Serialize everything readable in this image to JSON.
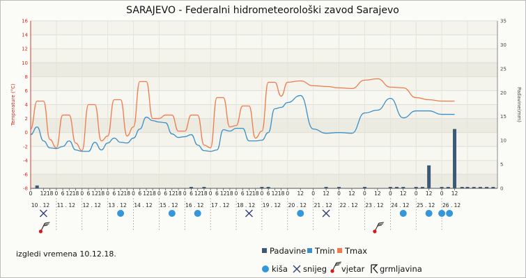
{
  "chart_data": {
    "type": "line",
    "title": "SARAJEVO - Federalni hidrometeorološki zavod Sarajevo",
    "ylabel": "Temperature (°C)",
    "y2label": "Padavine(mm)",
    "ylim": [
      -8,
      16
    ],
    "y2lim": [
      0,
      35
    ],
    "yticks": [
      -8,
      -6,
      -4,
      -2,
      0,
      2,
      4,
      6,
      8,
      10,
      12,
      14,
      16
    ],
    "y2ticks": [
      0,
      5,
      10,
      15,
      20,
      25,
      30,
      35
    ],
    "x_days": [
      "10 . 12",
      "11 . 12",
      "12 . 12",
      "13 . 12",
      "14 . 12",
      "15 . 12",
      "16 . 12",
      "17 . 12",
      "18 . 12",
      "19 . 12",
      "20 . 12",
      "21 . 12",
      "22 . 12",
      "23 . 12",
      "24 . 12",
      "25 . 12",
      "26 . 12"
    ],
    "x_hour_ticks": [
      {
        "h": 0,
        "l": "0"
      },
      {
        "h": 12,
        "l": "12"
      },
      {
        "h": 18,
        "l": "18"
      },
      {
        "h": 24,
        "l": "0"
      },
      {
        "h": 30,
        "l": "6"
      },
      {
        "h": 36,
        "l": "12"
      },
      {
        "h": 42,
        "l": "18"
      },
      {
        "h": 48,
        "l": "0"
      },
      {
        "h": 54,
        "l": "6"
      },
      {
        "h": 60,
        "l": "12"
      },
      {
        "h": 66,
        "l": "18"
      },
      {
        "h": 72,
        "l": "0"
      },
      {
        "h": 78,
        "l": "6"
      },
      {
        "h": 84,
        "l": "12"
      },
      {
        "h": 90,
        "l": "18"
      },
      {
        "h": 96,
        "l": "0"
      },
      {
        "h": 102,
        "l": "6"
      },
      {
        "h": 108,
        "l": "12"
      },
      {
        "h": 114,
        "l": "18"
      },
      {
        "h": 120,
        "l": "0"
      },
      {
        "h": 126,
        "l": "6"
      },
      {
        "h": 132,
        "l": "12"
      },
      {
        "h": 138,
        "l": "18"
      },
      {
        "h": 144,
        "l": "0"
      },
      {
        "h": 150,
        "l": "6"
      },
      {
        "h": 156,
        "l": "12"
      },
      {
        "h": 162,
        "l": "18"
      },
      {
        "h": 168,
        "l": "0"
      },
      {
        "h": 174,
        "l": "6"
      },
      {
        "h": 180,
        "l": "12"
      },
      {
        "h": 186,
        "l": "18"
      },
      {
        "h": 192,
        "l": "0"
      },
      {
        "h": 198,
        "l": "6"
      },
      {
        "h": 204,
        "l": "12"
      },
      {
        "h": 210,
        "l": "18"
      },
      {
        "h": 216,
        "l": "0"
      },
      {
        "h": 222,
        "l": "6"
      },
      {
        "h": 228,
        "l": "12"
      },
      {
        "h": 234,
        "l": "18"
      },
      {
        "h": 240,
        "l": "0"
      },
      {
        "h": 252,
        "l": "12"
      },
      {
        "h": 264,
        "l": "0"
      },
      {
        "h": 276,
        "l": "12"
      },
      {
        "h": 288,
        "l": "0"
      },
      {
        "h": 300,
        "l": "12"
      },
      {
        "h": 312,
        "l": "0"
      },
      {
        "h": 324,
        "l": "12"
      },
      {
        "h": 336,
        "l": "0"
      },
      {
        "h": 348,
        "l": "12"
      },
      {
        "h": 360,
        "l": "0"
      },
      {
        "h": 372,
        "l": "12"
      },
      {
        "h": 384,
        "l": "0"
      },
      {
        "h": 396,
        "l": "12"
      }
    ],
    "series": [
      {
        "name": "Tmax",
        "color": "#f07a4c",
        "hours": [
          0,
          6,
          12,
          18,
          24,
          30,
          36,
          42,
          48,
          54,
          60,
          66,
          72,
          78,
          84,
          90,
          96,
          102,
          108,
          114,
          120,
          126,
          132,
          138,
          144,
          150,
          156,
          162,
          168,
          174,
          180,
          186,
          192,
          198,
          204,
          210,
          216,
          222,
          228,
          234,
          240,
          252,
          264,
          276,
          288,
          300,
          312,
          324,
          336,
          348,
          360,
          372,
          384,
          396
        ],
        "values": [
          0.5,
          4.5,
          4.5,
          -1.0,
          -2.2,
          2.5,
          2.5,
          -1.5,
          -2.6,
          4.0,
          4.0,
          -1.2,
          -0.5,
          4.7,
          4.7,
          -0.5,
          0.8,
          7.3,
          7.3,
          2.0,
          2.0,
          2.5,
          2.5,
          0.2,
          0.2,
          2.5,
          2.5,
          -1.8,
          -2.2,
          5.0,
          5.0,
          0.8,
          1.0,
          3.8,
          3.8,
          -0.8,
          0.2,
          7.2,
          7.2,
          5.2,
          7.2,
          7.4,
          6.7,
          6.6,
          6.4,
          6.3,
          7.5,
          7.7,
          6.5,
          6.4,
          5.0,
          4.7,
          4.5,
          4.5
        ]
      },
      {
        "name": "Tmin",
        "color": "#3a8fc8",
        "hours": [
          0,
          6,
          12,
          18,
          24,
          30,
          36,
          42,
          48,
          54,
          60,
          66,
          72,
          78,
          84,
          90,
          96,
          102,
          108,
          114,
          120,
          126,
          132,
          138,
          144,
          150,
          156,
          162,
          168,
          174,
          180,
          186,
          192,
          198,
          204,
          210,
          216,
          222,
          228,
          234,
          240,
          252,
          264,
          276,
          288,
          300,
          312,
          324,
          336,
          348,
          360,
          372,
          384,
          396
        ],
        "values": [
          -0.3,
          0.8,
          -1.2,
          -2.2,
          -2.3,
          -2.0,
          -1.2,
          -2.5,
          -2.7,
          -2.7,
          -1.4,
          -2.5,
          -1.5,
          -0.8,
          -1.4,
          -1.5,
          -0.8,
          0.5,
          2.2,
          1.7,
          1.5,
          1.4,
          -0.2,
          -0.7,
          -0.6,
          -0.3,
          -1.8,
          -2.6,
          -2.7,
          -2.5,
          0.4,
          0.2,
          0.6,
          0.6,
          -1.2,
          -1.2,
          -1.1,
          0.0,
          3.4,
          3.6,
          4.3,
          5.3,
          0.5,
          -0.1,
          0.0,
          -0.1,
          2.8,
          3.2,
          4.9,
          2.1,
          3.1,
          3.1,
          2.6,
          2.6
        ]
      }
    ],
    "bars": {
      "name": "Padavine",
      "color": "#3b5a78",
      "hours": [
        6,
        150,
        162,
        216,
        222,
        276,
        288,
        312,
        336,
        342,
        348,
        360,
        366,
        372,
        384,
        390,
        396,
        403,
        408,
        414,
        420,
        426,
        432
      ],
      "values": [
        0.6,
        0.3,
        0.3,
        0.3,
        0.3,
        0.3,
        0.3,
        0.3,
        0.3,
        0.3,
        0.3,
        0.3,
        0.3,
        0.3,
        0.3,
        0.3,
        0.3,
        0.3,
        0.3,
        0.3,
        0.3,
        0.3,
        0.3
      ]
    },
    "note": "izgledi vremena 10.12.18.",
    "legend": {
      "series": [
        "Padavine",
        "Tmin",
        "Tmax"
      ],
      "symbols": [
        "kiša",
        "snijeg",
        "vjetar",
        "grmljavina"
      ]
    },
    "weather_symbols": [
      {
        "day": 0,
        "type": "snijeg",
        "pos": 0.5
      },
      {
        "day": 0,
        "type": "vjetar",
        "pos": 0.5
      },
      {
        "day": 3,
        "type": "kiša",
        "pos": 0.5
      },
      {
        "day": 5,
        "type": "kiša",
        "pos": 0.5
      },
      {
        "day": 6,
        "type": "kiša",
        "pos": 0.5
      },
      {
        "day": 8,
        "type": "snijeg",
        "pos": 0.5
      },
      {
        "day": 10,
        "type": "kiša",
        "pos": 0.5
      },
      {
        "day": 11,
        "type": "snijeg",
        "pos": 0.5
      },
      {
        "day": 13,
        "type": "vjetar",
        "pos": 0.5
      },
      {
        "day": 14,
        "type": "kiša",
        "pos": 0.5
      },
      {
        "day": 15,
        "type": "kiša",
        "pos": 0.5
      },
      {
        "day": 16,
        "type": "kiša",
        "pos": 0.0
      },
      {
        "day": 16,
        "type": "kiša",
        "pos": 0.3
      }
    ]
  }
}
